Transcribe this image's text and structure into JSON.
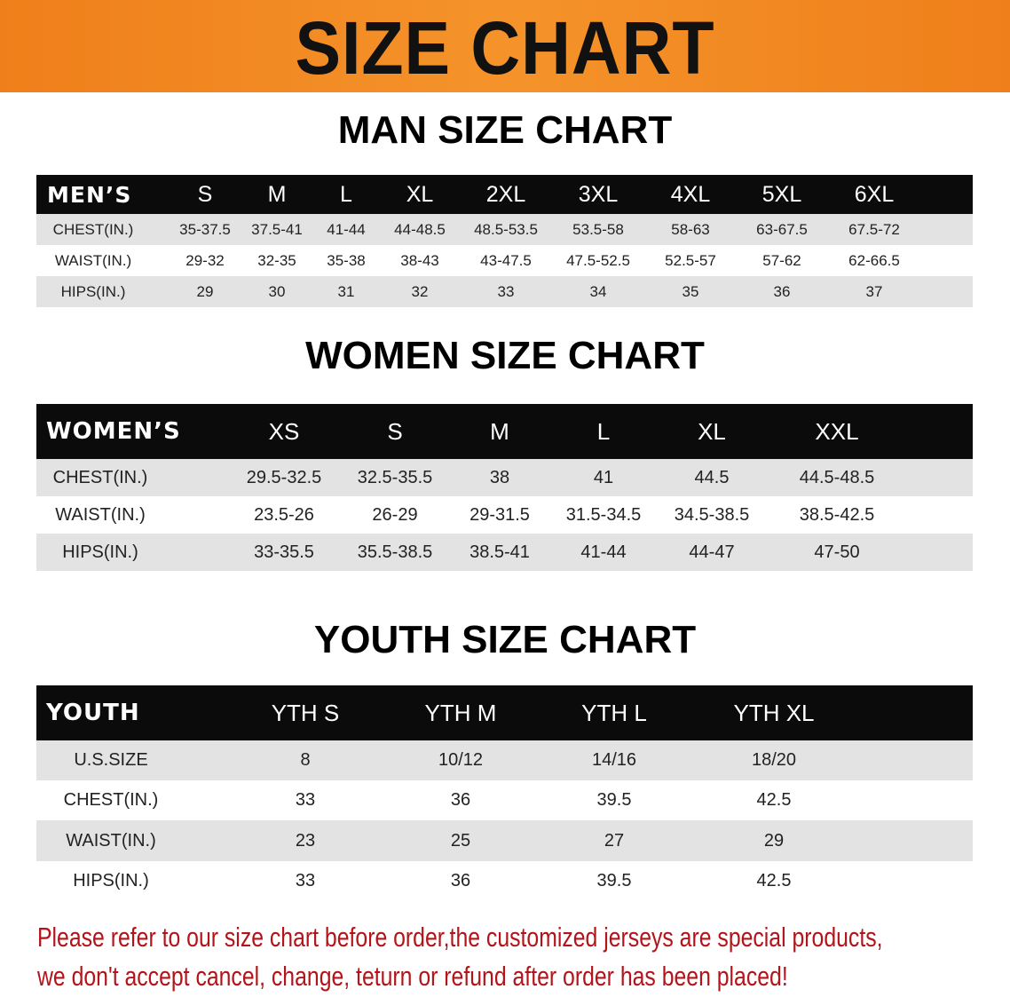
{
  "banner": {
    "title": "SIZE CHART",
    "color": "#f08a1f"
  },
  "men": {
    "title": "MAN SIZE CHART",
    "header": [
      "MEN’S",
      "S",
      "M",
      "L",
      "XL",
      "2XL",
      "3XL",
      "4XL",
      "5XL",
      "6XL"
    ],
    "rows": [
      [
        "CHEST(IN.)",
        "35-37.5",
        "37.5-41",
        "41-44",
        "44-48.5",
        "48.5-53.5",
        "53.5-58",
        "58-63",
        "63-67.5",
        "67.5-72"
      ],
      [
        "WAIST(IN.)",
        "29-32",
        "32-35",
        "35-38",
        "38-43",
        "43-47.5",
        "47.5-52.5",
        "52.5-57",
        "57-62",
        "62-66.5"
      ],
      [
        "HIPS(IN.)",
        "29",
        "30",
        "31",
        "32",
        "33",
        "34",
        "35",
        "36",
        "37"
      ]
    ]
  },
  "women": {
    "title": "WOMEN SIZE CHART",
    "header": [
      "WOMEN’S",
      "XS",
      "S",
      "M",
      "L",
      "XL",
      "XXL"
    ],
    "rows": [
      [
        "CHEST(IN.)",
        "29.5-32.5",
        "32.5-35.5",
        "38",
        "41",
        "44.5",
        "44.5-48.5"
      ],
      [
        "WAIST(IN.)",
        "23.5-26",
        "26-29",
        "29-31.5",
        "31.5-34.5",
        "34.5-38.5",
        "38.5-42.5"
      ],
      [
        "HIPS(IN.)",
        "33-35.5",
        "35.5-38.5",
        "38.5-41",
        "41-44",
        "44-47",
        "47-50"
      ]
    ]
  },
  "youth": {
    "title": "YOUTH SIZE CHART",
    "header": [
      "YOUTH",
      "YTH S",
      "YTH M",
      "YTH L",
      "YTH XL"
    ],
    "rows": [
      [
        "U.S.SIZE",
        "8",
        "10/12",
        "14/16",
        "18/20"
      ],
      [
        "CHEST(IN.)",
        "33",
        "36",
        "39.5",
        "42.5"
      ],
      [
        "WAIST(IN.)",
        "23",
        "25",
        "27",
        "29"
      ],
      [
        "HIPS(IN.)",
        "33",
        "36",
        "39.5",
        "42.5"
      ]
    ]
  },
  "note": {
    "line1": "Please refer to our size chart before order,the customized jerseys are special products,",
    "line2": "we don't accept cancel, change, teturn or refund after order has been placed!",
    "color": "#b3141a"
  }
}
